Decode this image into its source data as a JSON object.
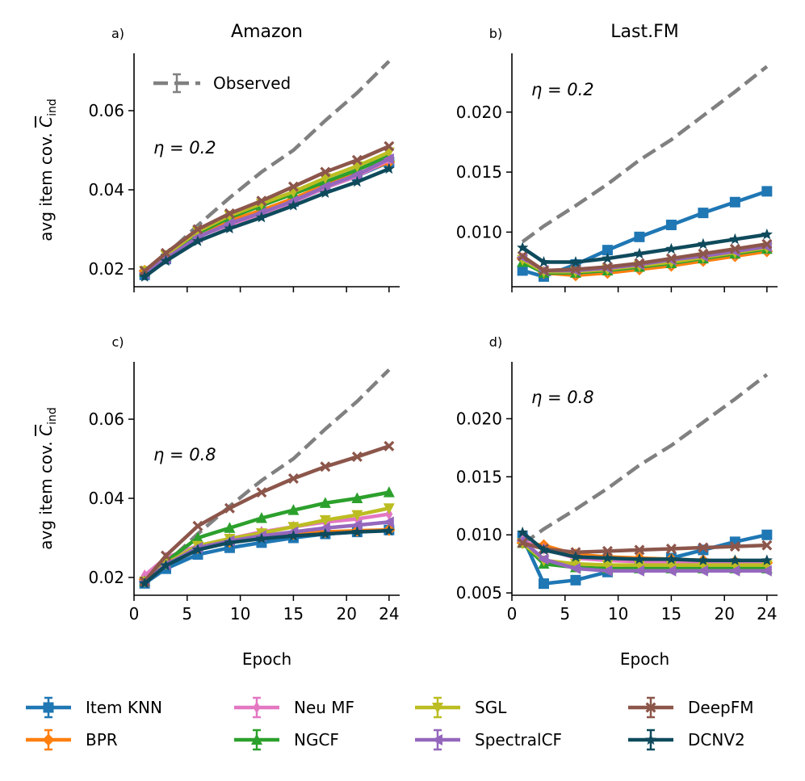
{
  "figure": {
    "ylabel": "avg item cov. ",
    "ylabel_symbol": "C",
    "ylabel_subscript": "ind",
    "xlabel": "Epoch",
    "observed_label": "Observed",
    "eta_prefix": "η = "
  },
  "colors": {
    "Item KNN": "#1f77b4",
    "BPR": "#ff7f0e",
    "Neu MF": "#e377c2",
    "NGCF": "#2ca02c",
    "SGL": "#bcbd22",
    "SpectralCF": "#9467bd",
    "DeepFM": "#8c564b",
    "DCNV2": "#0e4a5c",
    "Observed": "#808080"
  },
  "legend": {
    "entries": [
      {
        "name": "Item KNN",
        "marker": "square"
      },
      {
        "name": "BPR",
        "marker": "diamond"
      },
      {
        "name": "Neu MF",
        "marker": "thin_diamond"
      },
      {
        "name": "NGCF",
        "marker": "triangle_up"
      },
      {
        "name": "SGL",
        "marker": "triangle_down"
      },
      {
        "name": "SpectralCF",
        "marker": "triangle_left"
      },
      {
        "name": "DeepFM",
        "marker": "x"
      },
      {
        "name": "DCNV2",
        "marker": "star"
      }
    ]
  },
  "chart_data": [
    {
      "type": "line",
      "panel": "a)",
      "title": "Amazon",
      "eta": "0.2",
      "show_xticklabels": false,
      "show_ylabel": true,
      "show_observed_legend": true,
      "xlim": [
        0,
        25
      ],
      "ylim": [
        0.0155,
        0.0745
      ],
      "xticks": [
        0,
        5,
        10,
        15,
        20,
        24
      ],
      "yticks": [
        0.02,
        0.04,
        0.06
      ],
      "yticklabels": [
        "0.02",
        "0.04",
        "0.06"
      ],
      "x": [
        1,
        3,
        6,
        9,
        12,
        15,
        18,
        21,
        24
      ],
      "observed": {
        "x": [
          1,
          3,
          6,
          9,
          12,
          15,
          18,
          21,
          24
        ],
        "values": [
          0.0185,
          0.0235,
          0.031,
          0.038,
          0.0445,
          0.05,
          0.0575,
          0.0645,
          0.0725
        ]
      },
      "series": [
        {
          "name": "Item KNN",
          "values": [
            0.0185,
            0.0225,
            0.0285,
            0.032,
            0.0345,
            0.037,
            0.0405,
            0.0435,
            0.047
          ]
        },
        {
          "name": "BPR",
          "values": [
            0.0195,
            0.0232,
            0.0288,
            0.0322,
            0.0348,
            0.0378,
            0.0412,
            0.044,
            0.047
          ]
        },
        {
          "name": "Neu MF",
          "values": [
            0.019,
            0.0228,
            0.0282,
            0.0312,
            0.034,
            0.037,
            0.0405,
            0.0435,
            0.0475
          ]
        },
        {
          "name": "NGCF",
          "values": [
            0.0192,
            0.0232,
            0.029,
            0.033,
            0.036,
            0.039,
            0.042,
            0.045,
            0.0485
          ]
        },
        {
          "name": "SGL",
          "values": [
            0.0195,
            0.0235,
            0.0295,
            0.0335,
            0.0365,
            0.0395,
            0.043,
            0.046,
            0.0495
          ]
        },
        {
          "name": "SpectralCF",
          "values": [
            0.0188,
            0.0226,
            0.028,
            0.0315,
            0.0342,
            0.0372,
            0.0408,
            0.0438,
            0.0478
          ]
        },
        {
          "name": "DeepFM",
          "values": [
            0.0195,
            0.024,
            0.03,
            0.034,
            0.0372,
            0.0408,
            0.0445,
            0.0475,
            0.051
          ]
        },
        {
          "name": "DCNV2",
          "values": [
            0.018,
            0.022,
            0.027,
            0.0302,
            0.033,
            0.036,
            0.0392,
            0.042,
            0.0453
          ]
        }
      ]
    },
    {
      "type": "line",
      "panel": "b)",
      "title": "Last.FM",
      "eta": "0.2",
      "show_xticklabels": false,
      "show_ylabel": false,
      "show_observed_legend": false,
      "xlim": [
        0,
        25
      ],
      "ylim": [
        0.00545,
        0.0249
      ],
      "xticks": [
        0,
        5,
        10,
        15,
        20,
        24
      ],
      "yticks": [
        0.01,
        0.015,
        0.02
      ],
      "yticklabels": [
        "0.010",
        "0.015",
        "0.020"
      ],
      "x": [
        1,
        3,
        6,
        9,
        12,
        15,
        18,
        21,
        24
      ],
      "observed": {
        "x": [
          1,
          3,
          6,
          9,
          12,
          15,
          18,
          21,
          24
        ],
        "values": [
          0.0092,
          0.0105,
          0.0122,
          0.014,
          0.016,
          0.0177,
          0.0197,
          0.0217,
          0.0238
        ]
      },
      "series": [
        {
          "name": "Item KNN",
          "values": [
            0.0068,
            0.0063,
            0.0073,
            0.0085,
            0.0096,
            0.0106,
            0.0116,
            0.0125,
            0.0134
          ]
        },
        {
          "name": "BPR",
          "values": [
            0.0078,
            0.0066,
            0.0064,
            0.0066,
            0.0069,
            0.0072,
            0.0076,
            0.008,
            0.0084
          ]
        },
        {
          "name": "Neu MF",
          "values": [
            0.0078,
            0.0067,
            0.0066,
            0.0068,
            0.0071,
            0.0074,
            0.0078,
            0.0082,
            0.0086
          ]
        },
        {
          "name": "NGCF",
          "values": [
            0.0075,
            0.0066,
            0.0066,
            0.0068,
            0.0071,
            0.0074,
            0.0078,
            0.0082,
            0.0086
          ]
        },
        {
          "name": "SGL",
          "values": [
            0.0077,
            0.0067,
            0.0067,
            0.0069,
            0.0072,
            0.0075,
            0.0079,
            0.0083,
            0.0087
          ]
        },
        {
          "name": "SpectralCF",
          "values": [
            0.0079,
            0.0068,
            0.0068,
            0.007,
            0.0073,
            0.0077,
            0.008,
            0.0084,
            0.0088
          ]
        },
        {
          "name": "DeepFM",
          "values": [
            0.008,
            0.0068,
            0.0069,
            0.0071,
            0.0074,
            0.0078,
            0.0082,
            0.0086,
            0.009
          ]
        },
        {
          "name": "DCNV2",
          "values": [
            0.0087,
            0.0075,
            0.0075,
            0.0078,
            0.0082,
            0.0086,
            0.009,
            0.0094,
            0.0098
          ]
        }
      ]
    },
    {
      "type": "line",
      "panel": "c)",
      "title": "",
      "eta": "0.8",
      "show_xticklabels": true,
      "show_ylabel": true,
      "show_observed_legend": false,
      "xlim": [
        0,
        25
      ],
      "ylim": [
        0.0155,
        0.0745
      ],
      "xticks": [
        0,
        5,
        10,
        15,
        20,
        24
      ],
      "yticks": [
        0.02,
        0.04,
        0.06
      ],
      "yticklabels": [
        "0.02",
        "0.04",
        "0.06"
      ],
      "x": [
        1,
        3,
        6,
        9,
        12,
        15,
        18,
        21,
        24
      ],
      "observed": {
        "x": [
          1,
          3,
          6,
          9,
          12,
          15,
          18,
          21,
          24
        ],
        "values": [
          0.0185,
          0.0235,
          0.031,
          0.038,
          0.0445,
          0.05,
          0.0575,
          0.0645,
          0.0725
        ]
      },
      "series": [
        {
          "name": "Item KNN",
          "values": [
            0.0185,
            0.0222,
            0.0258,
            0.0275,
            0.0288,
            0.03,
            0.031,
            0.0315,
            0.032
          ]
        },
        {
          "name": "BPR",
          "values": [
            0.0195,
            0.024,
            0.0275,
            0.029,
            0.0305,
            0.031,
            0.0315,
            0.0318,
            0.032
          ]
        },
        {
          "name": "Neu MF",
          "values": [
            0.0205,
            0.025,
            0.028,
            0.0298,
            0.0315,
            0.0328,
            0.034,
            0.0348,
            0.036
          ]
        },
        {
          "name": "NGCF",
          "values": [
            0.019,
            0.024,
            0.03,
            0.0325,
            0.035,
            0.037,
            0.0388,
            0.04,
            0.0415
          ]
        },
        {
          "name": "SGL",
          "values": [
            0.019,
            0.0235,
            0.028,
            0.0298,
            0.0312,
            0.0328,
            0.0345,
            0.0358,
            0.0375
          ]
        },
        {
          "name": "SpectralCF",
          "values": [
            0.019,
            0.0232,
            0.0275,
            0.0292,
            0.0305,
            0.0315,
            0.0325,
            0.0332,
            0.034
          ]
        },
        {
          "name": "DeepFM",
          "values": [
            0.019,
            0.0255,
            0.033,
            0.0375,
            0.0415,
            0.045,
            0.048,
            0.0505,
            0.0532
          ]
        },
        {
          "name": "DCNV2",
          "values": [
            0.0185,
            0.023,
            0.027,
            0.0288,
            0.0298,
            0.0305,
            0.031,
            0.0315,
            0.0318
          ]
        }
      ]
    },
    {
      "type": "line",
      "panel": "d)",
      "title": "",
      "eta": "0.8",
      "show_xticklabels": true,
      "show_ylabel": false,
      "show_observed_legend": false,
      "xlim": [
        0,
        25
      ],
      "ylim": [
        0.0048,
        0.0249
      ],
      "xticks": [
        0,
        5,
        10,
        15,
        20,
        24
      ],
      "yticks": [
        0.005,
        0.01,
        0.015,
        0.02
      ],
      "yticklabels": [
        "0.005",
        "0.010",
        "0.015",
        "0.020"
      ],
      "x": [
        1,
        3,
        6,
        9,
        12,
        15,
        18,
        21,
        24
      ],
      "observed": {
        "x": [
          1,
          3,
          6,
          9,
          12,
          15,
          18,
          21,
          24
        ],
        "values": [
          0.0092,
          0.0105,
          0.0122,
          0.014,
          0.016,
          0.0177,
          0.0197,
          0.0217,
          0.0238
        ]
      },
      "series": [
        {
          "name": "Item KNN",
          "values": [
            0.0098,
            0.0058,
            0.0061,
            0.0068,
            0.0074,
            0.008,
            0.0087,
            0.0094,
            0.01
          ]
        },
        {
          "name": "BPR",
          "values": [
            0.0093,
            0.0091,
            0.0083,
            0.0081,
            0.008,
            0.0079,
            0.0078,
            0.0077,
            0.0076
          ]
        },
        {
          "name": "Neu MF",
          "values": [
            0.0095,
            0.0088,
            0.008,
            0.0078,
            0.0077,
            0.0076,
            0.0075,
            0.0075,
            0.0075
          ]
        },
        {
          "name": "NGCF",
          "values": [
            0.0093,
            0.0075,
            0.0072,
            0.0071,
            0.0071,
            0.0071,
            0.0071,
            0.0071,
            0.0071
          ]
        },
        {
          "name": "SGL",
          "values": [
            0.0093,
            0.0078,
            0.0075,
            0.0074,
            0.0074,
            0.0074,
            0.0074,
            0.0074,
            0.0074
          ]
        },
        {
          "name": "SpectralCF",
          "values": [
            0.0095,
            0.0079,
            0.0071,
            0.0069,
            0.0069,
            0.0069,
            0.0069,
            0.0069,
            0.0069
          ]
        },
        {
          "name": "DeepFM",
          "values": [
            0.0093,
            0.0088,
            0.0085,
            0.0086,
            0.0087,
            0.0088,
            0.0089,
            0.009,
            0.0091
          ]
        },
        {
          "name": "DCNV2",
          "values": [
            0.0102,
            0.0087,
            0.0081,
            0.008,
            0.0079,
            0.0079,
            0.0078,
            0.0078,
            0.0078
          ]
        }
      ]
    }
  ]
}
